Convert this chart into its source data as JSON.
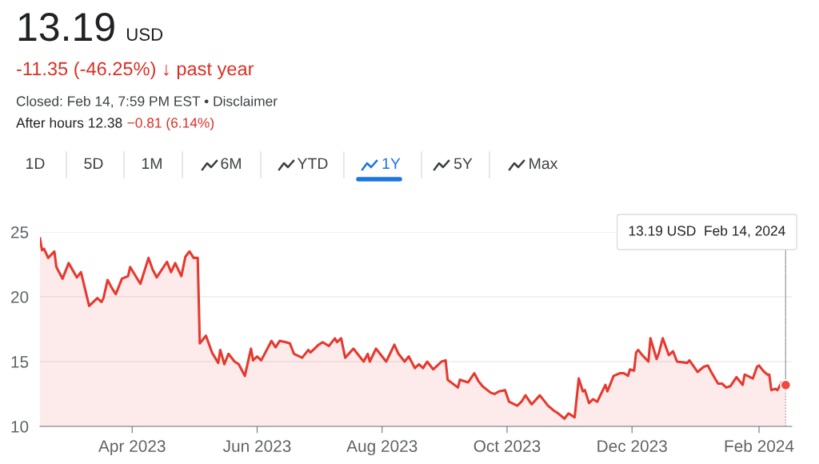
{
  "chart_data": {
    "type": "area",
    "title": "13.19",
    "subtitle": "USD",
    "annotations": [
      "-11.35 (-46.25%) ↓ past year",
      "Closed: Feb 14, 7:59 PM EST • Disclaimer",
      "After hours 12.38",
      "−0.81 (6.14%)",
      "1D",
      "5D",
      "1M",
      "6M",
      "YTD",
      "1Y",
      "5Y",
      "Max",
      {
        "text": "13.19 USD  Feb 14, 2024",
        "x": "2024-02-14",
        "y": 13.19
      }
    ],
    "x": [
      "2023-02-15",
      "2023-02-16",
      "2023-02-17",
      "2023-02-19",
      "2023-02-22",
      "2023-02-23",
      "2023-02-26",
      "2023-03-01",
      "2023-03-05",
      "2023-03-07",
      "2023-03-11",
      "2023-03-15",
      "2023-03-17",
      "2023-03-18",
      "2023-03-20",
      "2023-03-22",
      "2023-03-24",
      "2023-03-27",
      "2023-03-30",
      "2023-03-31",
      "2023-04-05",
      "2023-04-09",
      "2023-04-11",
      "2023-04-13",
      "2023-04-18",
      "2023-04-20",
      "2023-04-22",
      "2023-04-25",
      "2023-04-27",
      "2023-04-29",
      "2023-05-01",
      "2023-05-03",
      "2023-05-04",
      "2023-05-07",
      "2023-05-10",
      "2023-05-13",
      "2023-05-14",
      "2023-05-16",
      "2023-05-18",
      "2023-05-21",
      "2023-05-23",
      "2023-05-26",
      "2023-05-29",
      "2023-05-30",
      "2023-06-01",
      "2023-06-03",
      "2023-06-07",
      "2023-06-08",
      "2023-06-10",
      "2023-06-12",
      "2023-06-15",
      "2023-06-17",
      "2023-06-19",
      "2023-06-23",
      "2023-06-26",
      "2023-06-27",
      "2023-06-29",
      "2023-07-01",
      "2023-07-03",
      "2023-07-06",
      "2023-07-09",
      "2023-07-10",
      "2023-07-12",
      "2023-07-14",
      "2023-07-18",
      "2023-07-20",
      "2023-07-23",
      "2023-07-25",
      "2023-07-26",
      "2023-07-29",
      "2023-08-03",
      "2023-08-07",
      "2023-08-09",
      "2023-08-12",
      "2023-08-14",
      "2023-08-17",
      "2023-08-19",
      "2023-08-21",
      "2023-08-23",
      "2023-08-26",
      "2023-08-30",
      "2023-09-01",
      "2023-09-02",
      "2023-09-07",
      "2023-09-08",
      "2023-09-12",
      "2023-09-15",
      "2023-09-17",
      "2023-09-19",
      "2023-09-23",
      "2023-09-25",
      "2023-09-27",
      "2023-09-30",
      "2023-10-02",
      "2023-10-06",
      "2023-10-08",
      "2023-10-10",
      "2023-10-13",
      "2023-10-17",
      "2023-10-21",
      "2023-10-24",
      "2023-10-26",
      "2023-10-29",
      "2023-10-31",
      "2023-11-03",
      "2023-11-05",
      "2023-11-07",
      "2023-11-08",
      "2023-11-10",
      "2023-11-12",
      "2023-11-14",
      "2023-11-18",
      "2023-11-19",
      "2023-11-22",
      "2023-11-25",
      "2023-11-27",
      "2023-11-29",
      "2023-11-30",
      "2023-12-02",
      "2023-12-03",
      "2023-12-04",
      "2023-12-06",
      "2023-12-09",
      "2023-12-10",
      "2023-12-13",
      "2023-12-14",
      "2023-12-16",
      "2023-12-19",
      "2023-12-21",
      "2023-12-23",
      "2023-12-28",
      "2023-12-29",
      "2024-01-02",
      "2024-01-05",
      "2024-01-07",
      "2024-01-09",
      "2024-01-12",
      "2024-01-14",
      "2024-01-16",
      "2024-01-18",
      "2024-01-21",
      "2024-01-22",
      "2024-01-24",
      "2024-01-25",
      "2024-01-29",
      "2024-01-31",
      "2024-02-01",
      "2024-02-03",
      "2024-02-05",
      "2024-02-06",
      "2024-02-07",
      "2024-02-09",
      "2024-02-10",
      "2024-02-12",
      "2024-02-14"
    ],
    "series": [
      {
        "color": "#e5392f",
        "values": [
          24.5,
          23.6,
          23.7,
          23.0,
          23.5,
          22.3,
          21.4,
          22.6,
          21.5,
          21.9,
          19.3,
          19.9,
          19.6,
          19.9,
          21.3,
          20.7,
          20.2,
          21.4,
          21.6,
          22.3,
          21.0,
          23.0,
          22.1,
          21.5,
          22.7,
          21.9,
          22.6,
          21.6,
          23.1,
          23.5,
          23.0,
          23.0,
          16.4,
          17.0,
          15.7,
          14.9,
          15.9,
          14.8,
          15.6,
          15.0,
          14.8,
          13.9,
          16.0,
          15.1,
          15.4,
          15.1,
          16.3,
          16.6,
          16.1,
          16.6,
          16.5,
          16.4,
          15.6,
          15.3,
          15.9,
          15.7,
          16.0,
          16.3,
          16.5,
          16.2,
          16.8,
          16.5,
          16.8,
          15.3,
          16.0,
          15.6,
          15.0,
          15.6,
          15.0,
          16.0,
          15.0,
          16.3,
          15.6,
          15.0,
          15.4,
          14.5,
          14.8,
          14.5,
          15.0,
          14.4,
          15.0,
          15.1,
          13.6,
          13.0,
          13.6,
          13.4,
          14.1,
          13.5,
          13.1,
          12.6,
          12.5,
          12.7,
          12.8,
          11.9,
          11.6,
          11.9,
          12.4,
          11.7,
          12.4,
          11.6,
          11.2,
          11.0,
          10.6,
          11.0,
          10.7,
          13.7,
          12.7,
          12.8,
          11.8,
          12.1,
          11.9,
          13.2,
          12.7,
          13.9,
          14.1,
          14.1,
          13.9,
          14.4,
          14.3,
          15.7,
          15.9,
          15.5,
          15.0,
          16.8,
          15.2,
          15.6,
          16.8,
          15.5,
          15.8,
          15.0,
          14.9,
          15.1,
          14.2,
          14.6,
          14.7,
          14.1,
          13.3,
          13.3,
          13.0,
          13.1,
          13.8,
          13.6,
          13.2,
          14.0,
          13.7,
          14.6,
          14.7,
          14.3,
          14.0,
          14.0,
          12.8,
          12.9,
          12.8,
          13.4,
          13.19
        ]
      },
      {
        "type": "scatter",
        "x": [
          "2024-02-14"
        ],
        "color": "#f04a3e",
        "marker": "circle",
        "values": [
          13.19
        ]
      }
    ],
    "xlim": [
      "2023-02-15",
      "2024-02-17"
    ],
    "xticks": [
      {
        "value": "2023-04-01",
        "label": "Apr 2023"
      },
      {
        "value": "2023-06-01",
        "label": "Jun 2023"
      },
      {
        "value": "2023-08-01",
        "label": "Aug 2023"
      },
      {
        "value": "2023-10-01",
        "label": "Oct 2023"
      },
      {
        "value": "2023-12-01",
        "label": "Dec 2023"
      },
      {
        "value": "2024-02-01",
        "label": "Feb 2024"
      }
    ],
    "ylim": [
      10,
      25
    ],
    "yticks": [
      10,
      15,
      20,
      25
    ],
    "grid": "y",
    "ref_lines": [
      {
        "axis": "x",
        "value": "2024-02-14",
        "color": "#9e9e9e",
        "line_style": "dotted"
      }
    ]
  }
}
